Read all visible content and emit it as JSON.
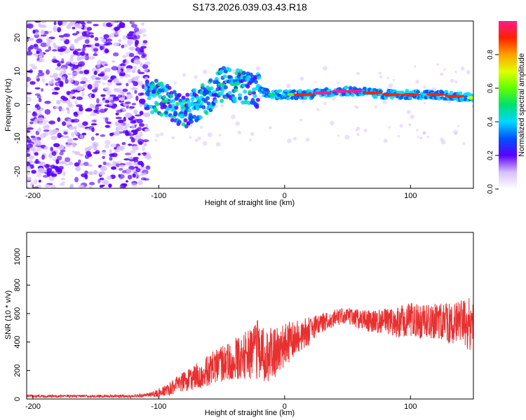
{
  "title": "S173.2026.039.03.43.R18",
  "chart_data": [
    {
      "type": "heatmap",
      "xlabel": "Height of straight line (km)",
      "ylabel": "Frequency (Hz)",
      "xlim": [
        -205,
        150
      ],
      "ylim": [
        -25,
        25
      ],
      "xticks": [
        "-200",
        "-100",
        "0",
        "100"
      ],
      "yticks": [
        "-20",
        "-10",
        "0",
        "10",
        "20"
      ],
      "colorbar": {
        "label": "Normalized spectral amplitude",
        "ticks": [
          "0.0",
          "0.2",
          "0.4",
          "0.6",
          "0.8"
        ],
        "range": [
          0,
          1
        ]
      },
      "frequency_track": [
        {
          "x": -110,
          "y": 3
        },
        {
          "x": -100,
          "y": 2
        },
        {
          "x": -90,
          "y": 0
        },
        {
          "x": -80,
          "y": -2
        },
        {
          "x": -70,
          "y": 0
        },
        {
          "x": -60,
          "y": 2
        },
        {
          "x": -50,
          "y": 6
        },
        {
          "x": -40,
          "y": 6
        },
        {
          "x": -30,
          "y": 5
        },
        {
          "x": -20,
          "y": 4
        },
        {
          "x": -10,
          "y": 3
        },
        {
          "x": 0,
          "y": 3
        },
        {
          "x": 20,
          "y": 3
        },
        {
          "x": 40,
          "y": 4
        },
        {
          "x": 60,
          "y": 4
        },
        {
          "x": 80,
          "y": 3
        },
        {
          "x": 100,
          "y": 3
        },
        {
          "x": 120,
          "y": 3
        },
        {
          "x": 150,
          "y": 2
        }
      ]
    },
    {
      "type": "line",
      "xlabel": "Height of straight line (km)",
      "ylabel": "SNR (10 * v/v)",
      "xlim": [
        -205,
        150
      ],
      "ylim": [
        0,
        1170
      ],
      "xticks": [
        "-200",
        "-100",
        "0",
        "100"
      ],
      "yticks": [
        "0",
        "200",
        "400",
        "600",
        "800",
        "1000"
      ],
      "series": [
        {
          "name": "SNR",
          "color": "#e83030",
          "x": [
            -205,
            -180,
            -150,
            -120,
            -105,
            -95,
            -85,
            -75,
            -65,
            -55,
            -45,
            -35,
            -25,
            -20,
            -15,
            -10,
            -5,
            0,
            10,
            20,
            30,
            40,
            50,
            60,
            70,
            80,
            90,
            100,
            110,
            120,
            130,
            140,
            145,
            150
          ],
          "y": [
            20,
            20,
            20,
            20,
            30,
            60,
            100,
            140,
            180,
            230,
            260,
            300,
            330,
            360,
            300,
            320,
            340,
            380,
            420,
            480,
            540,
            570,
            580,
            560,
            540,
            550,
            540,
            560,
            540,
            550,
            530,
            540,
            520,
            540
          ],
          "noise": [
            10,
            10,
            10,
            10,
            20,
            40,
            60,
            80,
            100,
            120,
            130,
            160,
            200,
            220,
            200,
            180,
            170,
            160,
            130,
            100,
            70,
            60,
            60,
            70,
            80,
            90,
            110,
            120,
            120,
            130,
            140,
            150,
            200,
            170
          ]
        }
      ]
    }
  ]
}
